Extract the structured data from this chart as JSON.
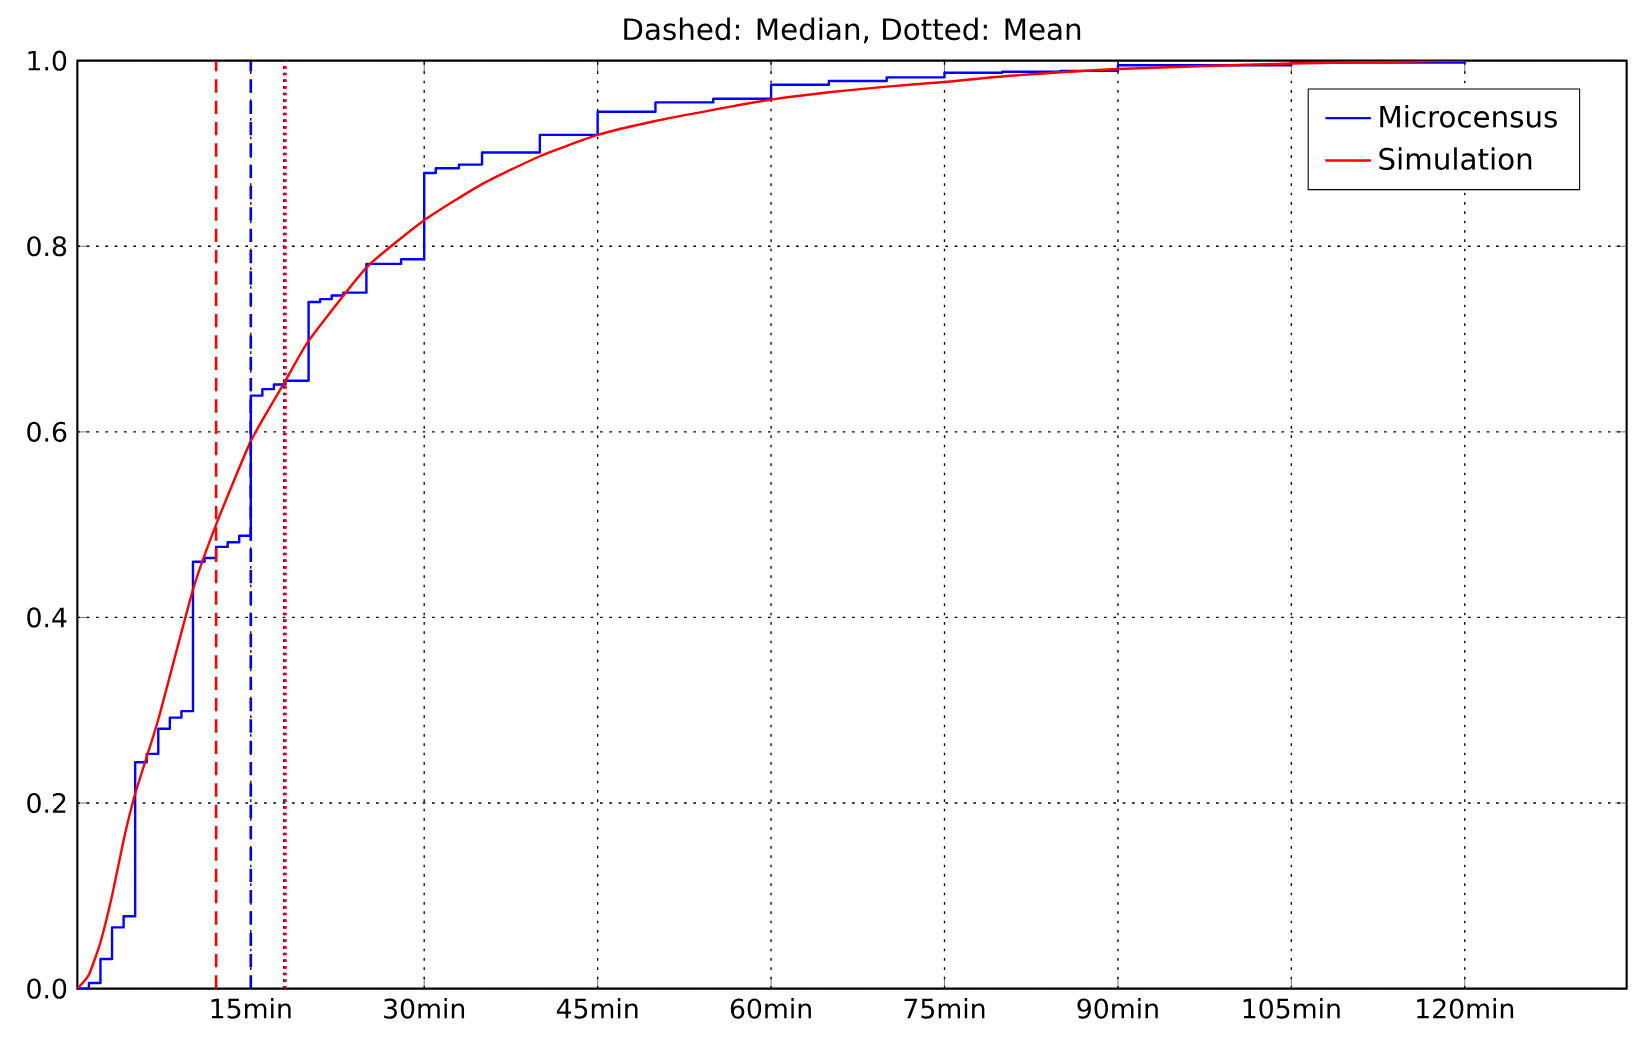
{
  "chart_data": {
    "type": "step",
    "title": "Dashed: Median, Dotted: Mean",
    "xlim": [
      0,
      134
    ],
    "ylim": [
      0,
      1
    ],
    "xticks": [
      {
        "value": 15,
        "label": "15min"
      },
      {
        "value": 30,
        "label": "30min"
      },
      {
        "value": 45,
        "label": "45min"
      },
      {
        "value": 60,
        "label": "60min"
      },
      {
        "value": 75,
        "label": "75min"
      },
      {
        "value": 90,
        "label": "90min"
      },
      {
        "value": 105,
        "label": "105min"
      },
      {
        "value": 120,
        "label": "120min"
      }
    ],
    "yticks": [
      {
        "value": 0,
        "label": "0.0"
      },
      {
        "value": 0.2,
        "label": "0.2"
      },
      {
        "value": 0.4,
        "label": "0.4"
      },
      {
        "value": 0.6,
        "label": "0.6"
      },
      {
        "value": 0.8,
        "label": "0.8"
      },
      {
        "value": 1,
        "label": "1.0"
      }
    ],
    "grid": true,
    "legend": "top right",
    "series": [
      {
        "name": "Microcensus",
        "color": "#0000ff",
        "x": [
          0,
          1,
          2,
          3,
          4,
          5,
          6,
          7,
          8,
          9,
          10,
          11,
          12,
          13,
          14,
          15,
          16,
          17,
          18,
          20,
          21,
          22,
          23,
          25,
          28,
          30,
          31,
          33,
          35,
          40,
          45,
          50,
          55,
          60,
          65,
          70,
          75,
          80,
          85,
          90,
          105,
          120
        ],
        "values": [
          0,
          0.006,
          0.032,
          0.066,
          0.078,
          0.244,
          0.253,
          0.28,
          0.292,
          0.299,
          0.46,
          0.464,
          0.476,
          0.481,
          0.488,
          0.639,
          0.646,
          0.651,
          0.655,
          0.74,
          0.743,
          0.747,
          0.75,
          0.781,
          0.786,
          0.879,
          0.884,
          0.888,
          0.901,
          0.92,
          0.945,
          0.955,
          0.959,
          0.974,
          0.978,
          0.982,
          0.987,
          0.988,
          0.989,
          0.995,
          0.998,
          1.0
        ]
      },
      {
        "name": "Simulation",
        "type": "line",
        "color": "#ff0000",
        "x": [
          0,
          1,
          2,
          3,
          4,
          5,
          7,
          10,
          12,
          15,
          18,
          20,
          25,
          30,
          35,
          40,
          45,
          50,
          55,
          60,
          65,
          70,
          75,
          80,
          90,
          105,
          120
        ],
        "values": [
          0,
          0.015,
          0.05,
          0.1,
          0.16,
          0.21,
          0.29,
          0.43,
          0.5,
          0.59,
          0.655,
          0.698,
          0.777,
          0.828,
          0.867,
          0.897,
          0.92,
          0.935,
          0.947,
          0.958,
          0.966,
          0.972,
          0.977,
          0.983,
          0.991,
          0.997,
          1.0
        ]
      }
    ],
    "ref_lines": [
      {
        "axis": "x",
        "value": 12,
        "color": "#ff0000",
        "line_style": "dashed"
      },
      {
        "axis": "x",
        "value": 15,
        "color": "#0000ff",
        "line_style": "dashed"
      },
      {
        "axis": "x",
        "value": 17.9,
        "color": "#0000ff",
        "line_style": "dotted"
      },
      {
        "axis": "x",
        "value": 18,
        "color": "#ff0000",
        "line_style": "dotted"
      }
    ]
  }
}
